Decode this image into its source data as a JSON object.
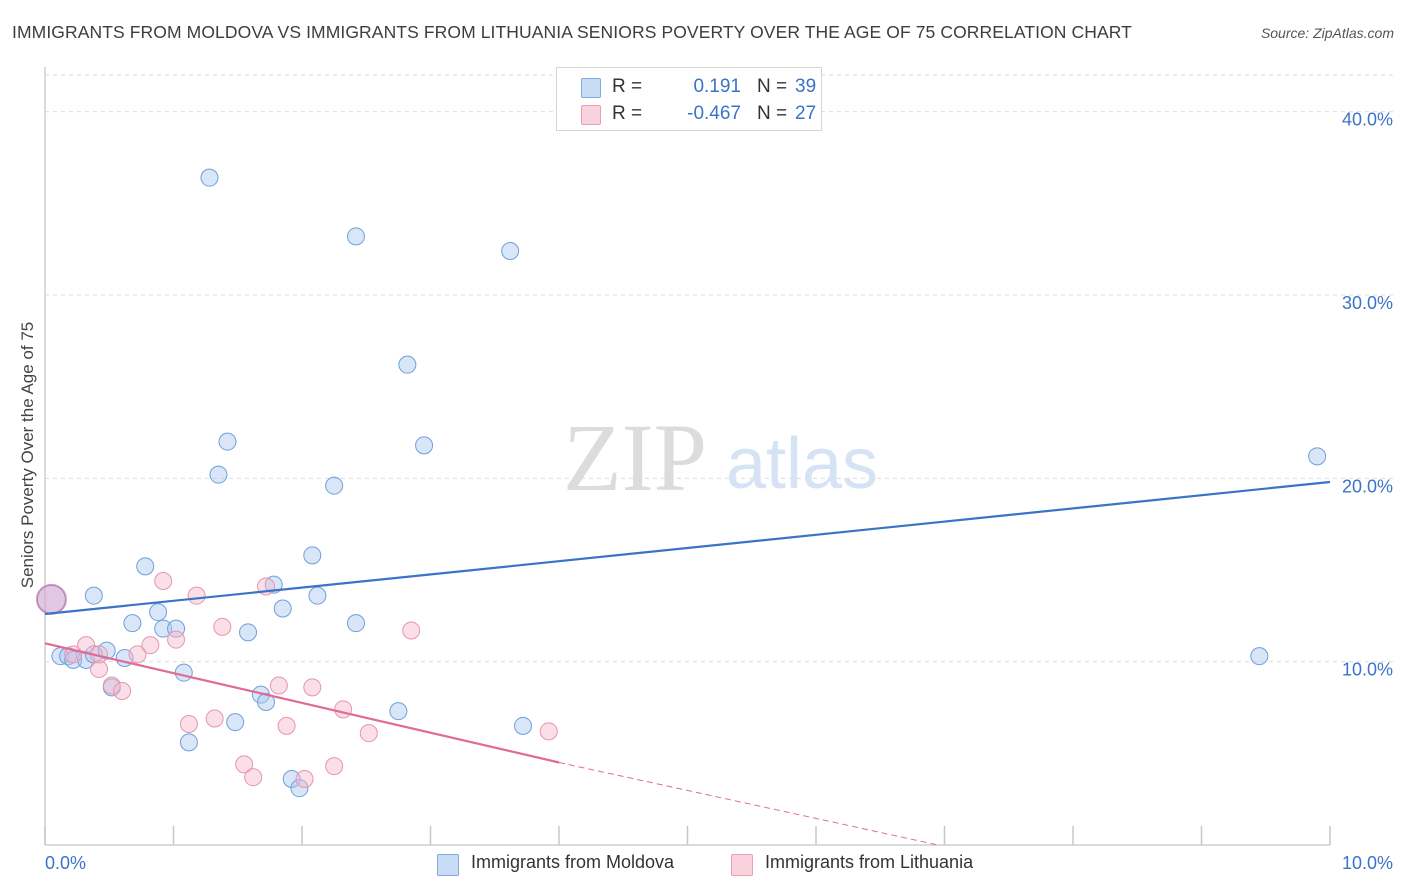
{
  "header": {
    "title": "IMMIGRANTS FROM MOLDOVA VS IMMIGRANTS FROM LITHUANIA SENIORS POVERTY OVER THE AGE OF 75 CORRELATION CHART",
    "source": "Source: ZipAtlas.com"
  },
  "watermark": {
    "zip": "ZIP",
    "atlas": "atlas"
  },
  "legend": {
    "rows": [
      {
        "r_label": "R =",
        "r_value": "0.191",
        "n_label": "N =",
        "n_value": "39",
        "color": "#a9c8f0"
      },
      {
        "r_label": "R =",
        "r_value": "-0.467",
        "n_label": "N =",
        "n_value": "27",
        "color": "#f5b8cb"
      }
    ]
  },
  "chart_data": {
    "type": "scatter",
    "title": "IMMIGRANTS FROM MOLDOVA VS IMMIGRANTS FROM LITHUANIA SENIORS POVERTY OVER THE AGE OF 75 CORRELATION CHART",
    "xlabel": "",
    "ylabel": "Seniors Poverty Over the Age of 75",
    "xlim": [
      0,
      10
    ],
    "ylim": [
      0,
      42
    ],
    "x_tick_labels": [
      "0.0%",
      "10.0%"
    ],
    "y_ticks": [
      10,
      20,
      30,
      40
    ],
    "y_tick_labels": [
      "10.0%",
      "20.0%",
      "30.0%",
      "40.0%"
    ],
    "grid": true,
    "legend_position": "top-center",
    "series": [
      {
        "name": "Immigrants from Moldova",
        "color": "#a9c8f0",
        "stroke": "#6f9fdc",
        "trend_color": "#3b73c8",
        "trend": {
          "x": [
            0,
            10
          ],
          "y": [
            12.6,
            19.8
          ]
        },
        "points": [
          {
            "x": 0.12,
            "y": 10.3
          },
          {
            "x": 0.18,
            "y": 10.3
          },
          {
            "x": 0.22,
            "y": 10.1
          },
          {
            "x": 0.32,
            "y": 10.1
          },
          {
            "x": 0.38,
            "y": 10.4
          },
          {
            "x": 0.48,
            "y": 10.6
          },
          {
            "x": 0.38,
            "y": 13.6
          },
          {
            "x": 0.52,
            "y": 8.6
          },
          {
            "x": 0.62,
            "y": 10.2
          },
          {
            "x": 0.68,
            "y": 12.1
          },
          {
            "x": 0.78,
            "y": 15.2
          },
          {
            "x": 0.88,
            "y": 12.7
          },
          {
            "x": 0.92,
            "y": 11.8
          },
          {
            "x": 1.02,
            "y": 11.8
          },
          {
            "x": 1.08,
            "y": 9.4
          },
          {
            "x": 1.12,
            "y": 5.6
          },
          {
            "x": 1.28,
            "y": 36.4
          },
          {
            "x": 1.35,
            "y": 20.2
          },
          {
            "x": 1.42,
            "y": 22.0
          },
          {
            "x": 1.48,
            "y": 6.7
          },
          {
            "x": 1.58,
            "y": 11.6
          },
          {
            "x": 1.68,
            "y": 8.2
          },
          {
            "x": 1.72,
            "y": 7.8
          },
          {
            "x": 1.78,
            "y": 14.2
          },
          {
            "x": 1.85,
            "y": 12.9
          },
          {
            "x": 1.92,
            "y": 3.6
          },
          {
            "x": 1.98,
            "y": 3.1
          },
          {
            "x": 2.08,
            "y": 15.8
          },
          {
            "x": 2.12,
            "y": 13.6
          },
          {
            "x": 2.25,
            "y": 19.6
          },
          {
            "x": 2.42,
            "y": 33.2
          },
          {
            "x": 2.42,
            "y": 12.1
          },
          {
            "x": 2.75,
            "y": 7.3
          },
          {
            "x": 2.82,
            "y": 26.2
          },
          {
            "x": 2.95,
            "y": 21.8
          },
          {
            "x": 3.62,
            "y": 32.4
          },
          {
            "x": 3.72,
            "y": 6.5
          },
          {
            "x": 9.45,
            "y": 10.3
          },
          {
            "x": 9.9,
            "y": 21.2
          }
        ]
      },
      {
        "name": "Immigrants from Lithuania",
        "color": "#f5b8cb",
        "stroke": "#e895ad",
        "trend_color": "#e06b94",
        "trend": {
          "x": [
            0,
            4.0
          ],
          "y": [
            11.0,
            4.5
          ]
        },
        "trend_dashed": {
          "x": [
            4.0,
            6.95
          ],
          "y": [
            4.5,
            0.0
          ]
        },
        "points": [
          {
            "x": 0.05,
            "y": 13.4
          },
          {
            "x": 0.22,
            "y": 10.4
          },
          {
            "x": 0.32,
            "y": 10.9
          },
          {
            "x": 0.42,
            "y": 9.6
          },
          {
            "x": 0.42,
            "y": 10.4
          },
          {
            "x": 0.52,
            "y": 8.7
          },
          {
            "x": 0.6,
            "y": 8.4
          },
          {
            "x": 0.72,
            "y": 10.4
          },
          {
            "x": 0.82,
            "y": 10.9
          },
          {
            "x": 0.92,
            "y": 14.4
          },
          {
            "x": 1.02,
            "y": 11.2
          },
          {
            "x": 1.12,
            "y": 6.6
          },
          {
            "x": 1.18,
            "y": 13.6
          },
          {
            "x": 1.32,
            "y": 6.9
          },
          {
            "x": 1.38,
            "y": 11.9
          },
          {
            "x": 1.55,
            "y": 4.4
          },
          {
            "x": 1.62,
            "y": 3.7
          },
          {
            "x": 1.72,
            "y": 14.1
          },
          {
            "x": 1.82,
            "y": 8.7
          },
          {
            "x": 1.88,
            "y": 6.5
          },
          {
            "x": 2.02,
            "y": 3.6
          },
          {
            "x": 2.08,
            "y": 8.6
          },
          {
            "x": 2.25,
            "y": 4.3
          },
          {
            "x": 2.32,
            "y": 7.4
          },
          {
            "x": 2.52,
            "y": 6.1
          },
          {
            "x": 2.85,
            "y": 11.7
          },
          {
            "x": 3.92,
            "y": 6.2
          }
        ]
      }
    ]
  }
}
